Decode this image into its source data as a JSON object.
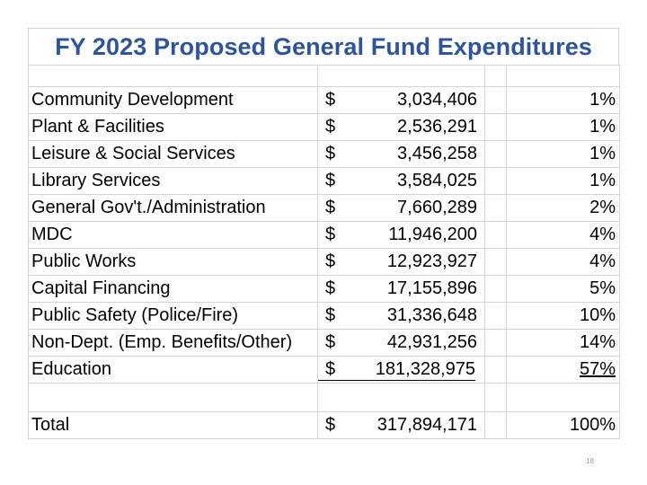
{
  "title": "FY 2023 Proposed General Fund Expenditures",
  "currency_symbol": "$",
  "rows": [
    {
      "name": "Community Development",
      "amount": "3,034,406",
      "pct": "1%"
    },
    {
      "name": "Plant & Facilities",
      "amount": "2,536,291",
      "pct": "1%"
    },
    {
      "name": "Leisure & Social Services",
      "amount": "3,456,258",
      "pct": "1%"
    },
    {
      "name": "Library Services",
      "amount": "3,584,025",
      "pct": "1%"
    },
    {
      "name": "General Gov't./Administration",
      "amount": "7,660,289",
      "pct": "2%"
    },
    {
      "name": "MDC",
      "amount": "11,946,200",
      "pct": "4%"
    },
    {
      "name": "Public Works",
      "amount": "12,923,927",
      "pct": "4%"
    },
    {
      "name": "Capital Financing",
      "amount": "17,155,896",
      "pct": "5%"
    },
    {
      "name": "Public Safety (Police/Fire)",
      "amount": "31,336,648",
      "pct": "10%"
    },
    {
      "name": "Non-Dept. (Emp. Benefits/Other)",
      "amount": "42,931,256",
      "pct": "14%"
    },
    {
      "name": "Education",
      "amount": "181,328,975",
      "pct": "57%"
    }
  ],
  "total": {
    "name": "Total",
    "amount": "317,894,171",
    "pct": "100%"
  },
  "slide_number": "18",
  "colors": {
    "title": "#2f5597",
    "grid": "#d4d4d4"
  }
}
